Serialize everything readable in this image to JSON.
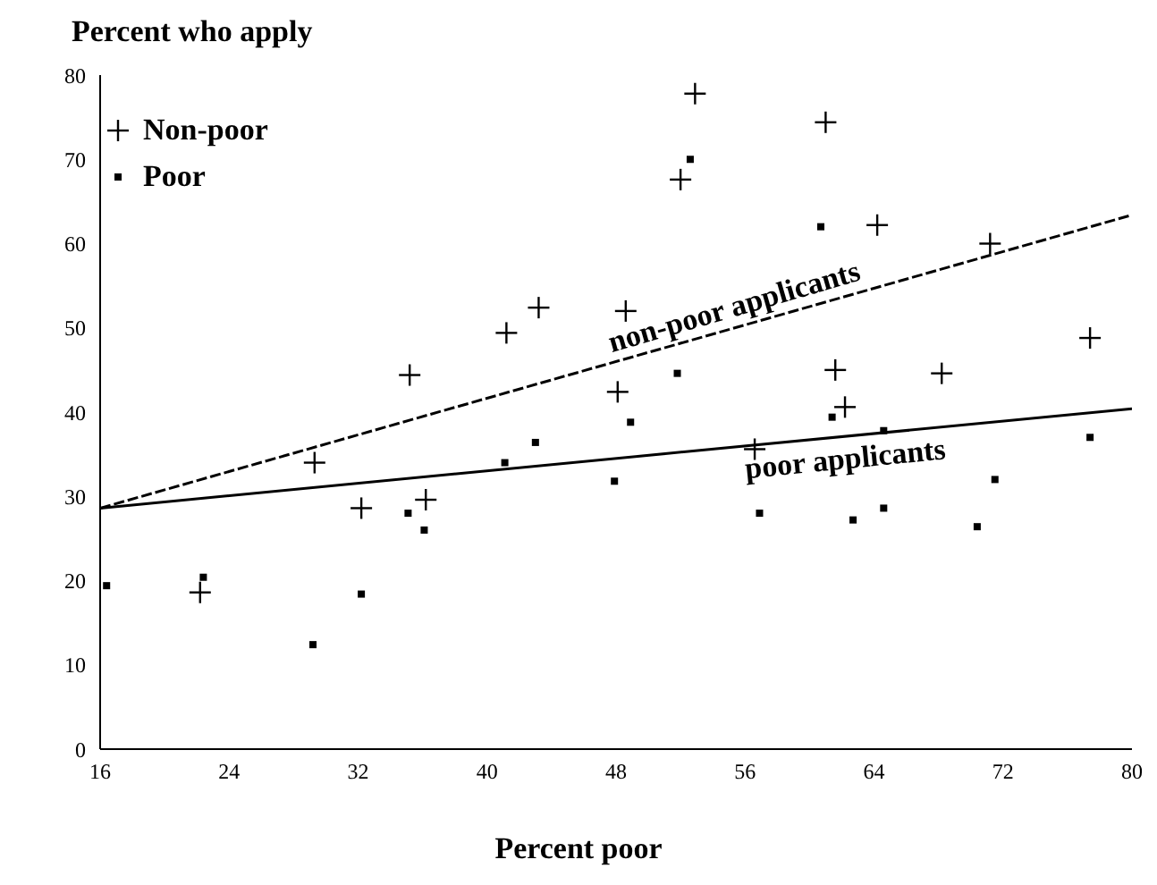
{
  "chart_data": {
    "type": "scatter",
    "ylabel": "Percent who apply",
    "xlabel": "Percent poor",
    "xlim": [
      16,
      80
    ],
    "xticks": [
      16,
      24,
      32,
      40,
      48,
      56,
      64,
      72,
      80
    ],
    "ylim": [
      0,
      80
    ],
    "yticks": [
      0,
      10,
      20,
      30,
      40,
      50,
      60,
      70,
      80
    ],
    "grid": false,
    "legend": "top left",
    "series": [
      {
        "name": "Non-poor",
        "type": "scatter",
        "marker": "cross",
        "color": "#000000",
        "x": [
          22.2,
          29.3,
          32.2,
          35.2,
          36.2,
          41.2,
          43.2,
          48.1,
          48.6,
          52.9,
          52,
          61,
          64.2,
          61.6,
          62.2,
          68.2,
          77.4,
          71.2,
          56.6
        ],
        "values": [
          18.6,
          34,
          28.6,
          44.4,
          29.6,
          49.4,
          52.4,
          42.4,
          52,
          77.8,
          67.6,
          74.4,
          62.2,
          45,
          40.6,
          44.6,
          48.8,
          60,
          35.6
        ]
      },
      {
        "name": "Poor",
        "type": "scatter",
        "marker": "square",
        "color": "#000000",
        "x": [
          16.4,
          22.4,
          29.2,
          32.2,
          35.1,
          36.1,
          41.1,
          43,
          47.9,
          48.9,
          51.8,
          52.6,
          60.7,
          56.9,
          62.7,
          64.6,
          64.6,
          70.4,
          71.5,
          77.4,
          61.4
        ],
        "values": [
          19.4,
          20.4,
          12.4,
          18.4,
          28,
          26,
          34,
          36.4,
          31.8,
          38.8,
          44.6,
          70,
          62,
          28,
          27.2,
          28.6,
          37.8,
          26.4,
          32,
          37,
          39.4
        ]
      },
      {
        "name": "non-poor applicants",
        "type": "line",
        "marker": "none",
        "line_style": "dashed",
        "color": "#000000",
        "x": [
          16,
          80
        ],
        "values": [
          28.6,
          63.4
        ]
      },
      {
        "name": "poor applicants",
        "type": "line",
        "marker": "none",
        "line_style": "solid",
        "color": "#000000",
        "x": [
          16,
          80
        ],
        "values": [
          28.6,
          40.4
        ]
      }
    ]
  }
}
